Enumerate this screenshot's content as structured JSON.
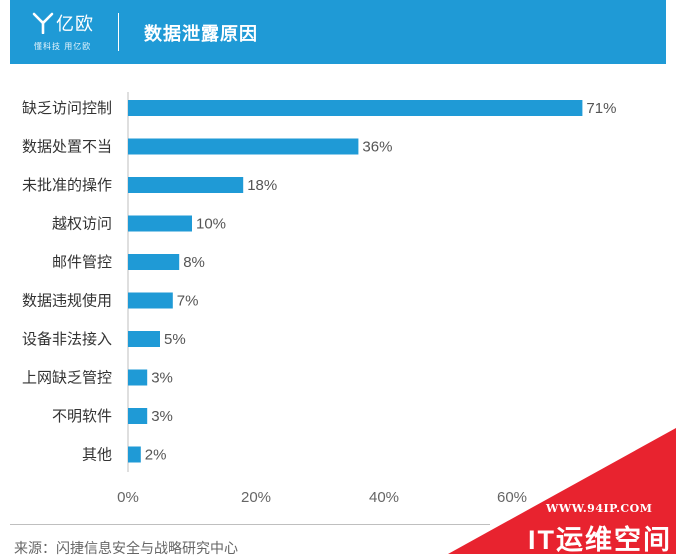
{
  "header": {
    "logo_name": "亿欧",
    "logo_slogan": "懂科技 用亿欧",
    "title": "数据泄露原因"
  },
  "chart_data": {
    "type": "bar",
    "orientation": "horizontal",
    "title": "数据泄露原因",
    "categories": [
      "缺乏访问控制",
      "数据处置不当",
      "未批准的操作",
      "越权访问",
      "邮件管控",
      "数据违规使用",
      "设备非法接入",
      "上网缺乏管控",
      "不明软件",
      "其他"
    ],
    "values": [
      71,
      36,
      18,
      10,
      8,
      7,
      5,
      3,
      3,
      2
    ],
    "value_labels": [
      "71%",
      "36%",
      "18%",
      "10%",
      "8%",
      "7%",
      "5%",
      "3%",
      "3%",
      "2%"
    ],
    "x_ticks": [
      "0%",
      "20%",
      "40%",
      "60%"
    ],
    "xlim": [
      0,
      80
    ],
    "grid": false,
    "bar_color": "#1f9ad6"
  },
  "source": "来源：闪捷信息安全与战略研究中心",
  "watermark": {
    "url": "WWW.94IP.COM",
    "text": "IT运维空间",
    "color": "#e8232f"
  }
}
